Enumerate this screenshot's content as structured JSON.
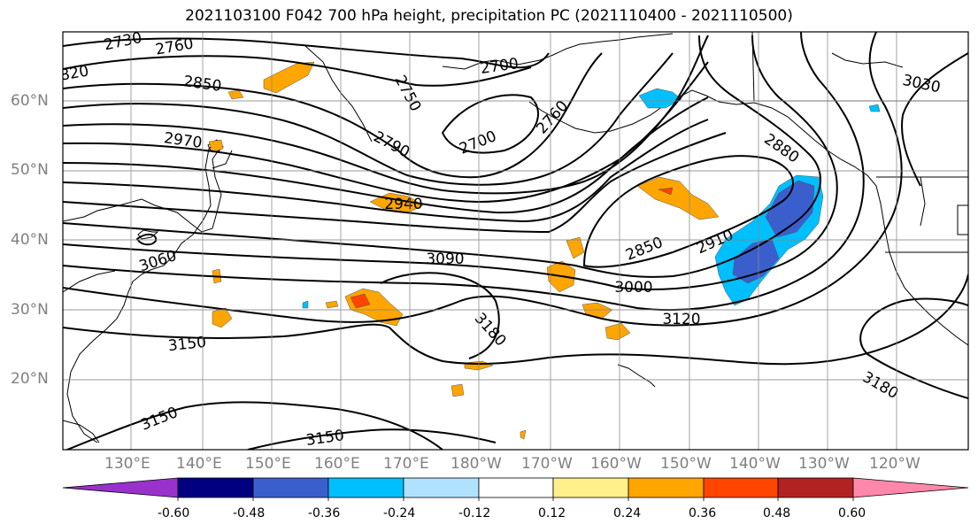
{
  "title": "2021103100 F042 700 hPa height, precipitation PC (2021110400 - 2021110500)",
  "map": {
    "lat_labels": [
      "60°N",
      "50°N",
      "40°N",
      "30°N",
      "20°N"
    ],
    "lon_labels": [
      "130°E",
      "140°E",
      "150°E",
      "160°E",
      "170°E",
      "180°W",
      "170°W",
      "160°W",
      "150°W",
      "140°W",
      "130°W",
      "120°W"
    ],
    "contour_labels": [
      "2730",
      "2760",
      "820",
      "2850",
      "2970",
      "2750",
      "2790",
      "2700",
      "2700",
      "2760",
      "2940",
      "3060",
      "3090",
      "3000",
      "2850",
      "2910",
      "2880",
      "3030",
      "3120",
      "3150",
      "3180",
      "3180",
      "3150",
      "3150"
    ]
  },
  "colorbar": {
    "colors": [
      "#9932cc",
      "#000080",
      "#3a5fcd",
      "#00bfff",
      "#b0e2ff",
      "#ffffff",
      "#fff08c",
      "#ffa500",
      "#ff4500",
      "#b22222",
      "#ff88aa"
    ],
    "tick_labels": [
      "-0.60",
      "-0.48",
      "-0.36",
      "-0.24",
      "-0.12",
      "0.12",
      "0.24",
      "0.36",
      "0.48",
      "0.60"
    ]
  }
}
